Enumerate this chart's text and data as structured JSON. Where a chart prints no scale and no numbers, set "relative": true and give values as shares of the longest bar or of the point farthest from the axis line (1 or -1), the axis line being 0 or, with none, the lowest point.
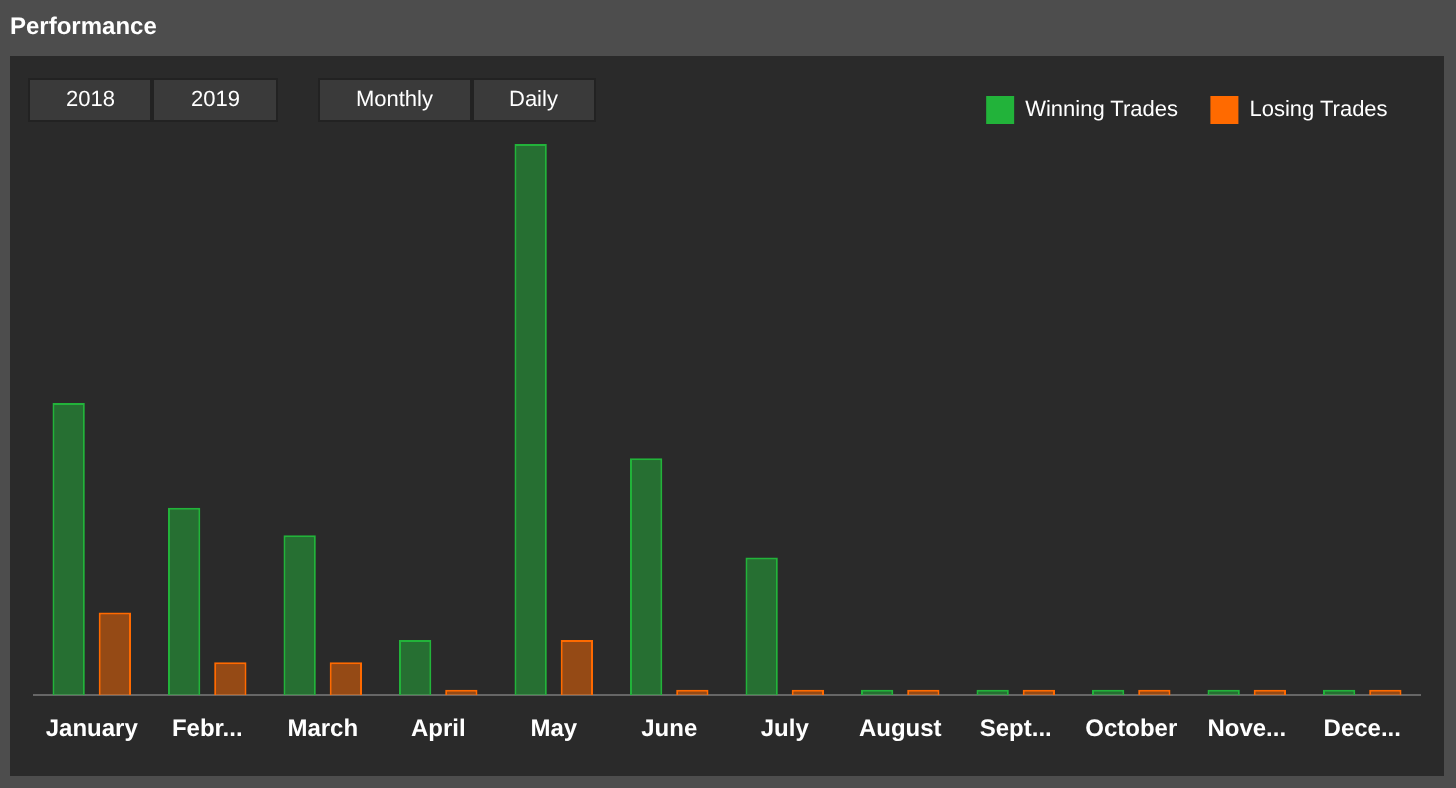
{
  "chart_data": {
    "type": "bar",
    "title": "Performance",
    "relative": true,
    "legend": "top right",
    "categories": [
      "January",
      "Febr...",
      "March",
      "April",
      "May",
      "June",
      "July",
      "August",
      "Sept...",
      "October",
      "Nove...",
      "Dece..."
    ],
    "series": [
      {
        "name": "Winning Trades",
        "color": "#22b33a",
        "values": [
          0.53,
          0.34,
          0.29,
          0.1,
          1,
          0.43,
          0.25,
          0.01,
          0.01,
          0.01,
          0.01,
          0.01
        ]
      },
      {
        "name": "Losing Trades",
        "color": "#ff6a00",
        "values": [
          0.15,
          0.06,
          0.06,
          0.01,
          0.1,
          0.01,
          0.01,
          0.01,
          0.01,
          0.01,
          0.01,
          0.01
        ]
      }
    ],
    "annotations": [
      "2018",
      "2019",
      "Monthly",
      "Daily"
    ]
  }
}
